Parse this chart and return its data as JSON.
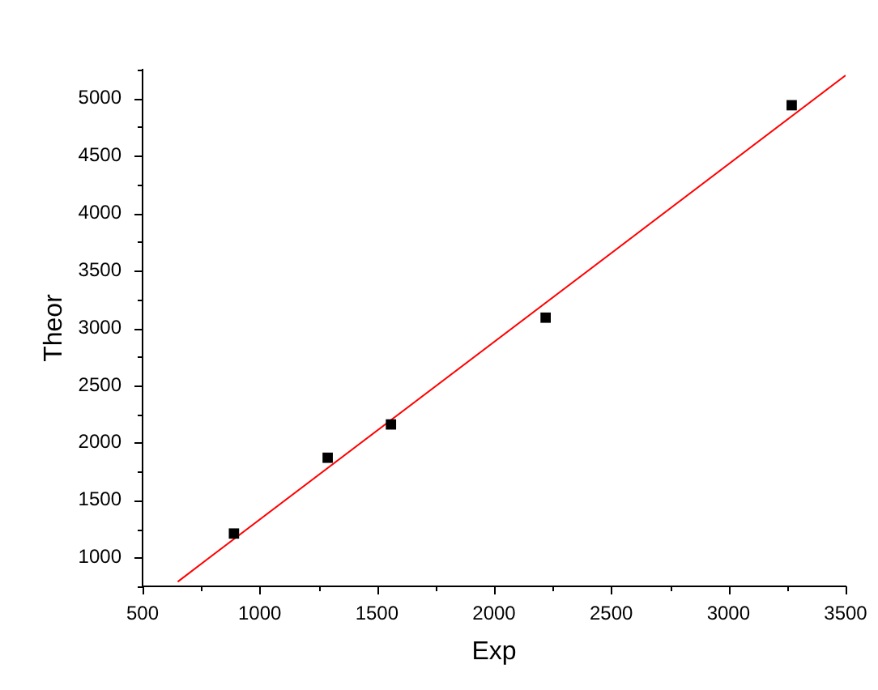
{
  "chart_data": {
    "type": "scatter",
    "xlabel": "Exp",
    "ylabel": "Theor",
    "xlim": [
      500,
      3500
    ],
    "ylim": [
      750,
      5250
    ],
    "xticks": [
      500,
      {
        "value": 750,
        "label": null
      },
      1000,
      {
        "value": 1250,
        "label": null
      },
      1500,
      {
        "value": 1750,
        "label": null
      },
      2000,
      {
        "value": 2250,
        "label": null
      },
      2500,
      {
        "value": 2750,
        "label": null
      },
      3000,
      {
        "value": 3250,
        "label": null
      },
      3500
    ],
    "yticks": [
      {
        "value": 750,
        "label": null
      },
      1000,
      {
        "value": 1250,
        "label": null
      },
      1500,
      {
        "value": 1750,
        "label": null
      },
      2000,
      {
        "value": 2250,
        "label": null
      },
      2500,
      {
        "value": 2750,
        "label": null
      },
      3000,
      {
        "value": 3250,
        "label": null
      },
      3500,
      {
        "value": 3750,
        "label": null
      },
      4000,
      {
        "value": 4250,
        "label": null
      },
      4500,
      {
        "value": 4750,
        "label": null
      },
      5000,
      {
        "value": 5250,
        "label": null
      }
    ],
    "grid": false,
    "legend": false,
    "series": [
      {
        "type": "scatter",
        "color": "#000000",
        "marker": "square",
        "x": [
          890,
          1290,
          1560,
          2220,
          3270
        ],
        "values": [
          1210,
          1870,
          2160,
          3090,
          4940
        ]
      },
      {
        "type": "line",
        "color": "#ff0000",
        "marker": "none",
        "line_style": "solid",
        "x": [
          650,
          3500
        ],
        "values": [
          790,
          5200
        ]
      }
    ]
  }
}
